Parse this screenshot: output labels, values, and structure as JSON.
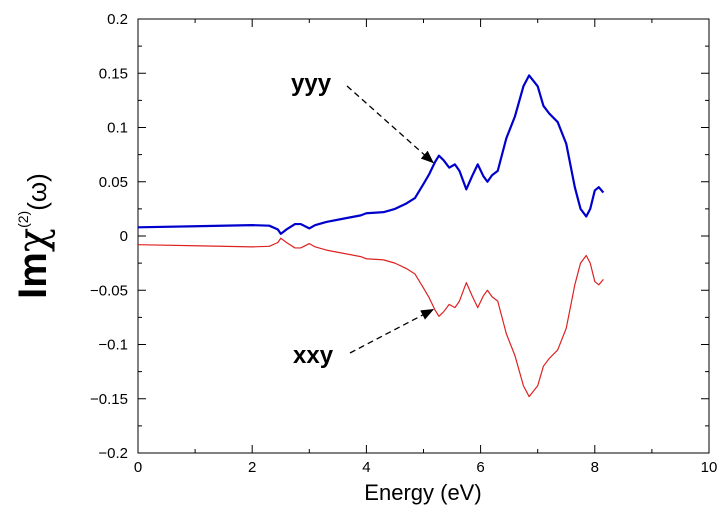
{
  "chart_data": {
    "type": "line",
    "title": "",
    "xlabel": "Energy (eV)",
    "ylabel": {
      "main": "Im",
      "chi": "χ",
      "sup": "(2)",
      "arg": "(ω)"
    },
    "xlim": [
      0,
      10
    ],
    "ylim": [
      -0.2,
      0.2
    ],
    "x_ticks": [
      0,
      2,
      4,
      6,
      8,
      10
    ],
    "y_ticks": [
      -0.2,
      -0.15,
      -0.1,
      -0.05,
      0,
      0.05,
      0.1,
      0.15,
      0.2
    ],
    "x_tick_labels": [
      "0",
      "2",
      "4",
      "6",
      "8",
      "10"
    ],
    "y_tick_labels": [
      "−0.2",
      "−0.15",
      "−0.1",
      "−0.05",
      "0",
      "0.05",
      "0.1",
      "0.15",
      "0.2"
    ],
    "grid": false,
    "series": [
      {
        "name": "yyy",
        "color": "#0000cc",
        "points": [
          [
            0,
            0.008
          ],
          [
            1.0,
            0.009
          ],
          [
            2.0,
            0.01
          ],
          [
            2.3,
            0.0095
          ],
          [
            2.45,
            0.006
          ],
          [
            2.5,
            0.002
          ],
          [
            2.6,
            0.006
          ],
          [
            2.75,
            0.011
          ],
          [
            2.85,
            0.011
          ],
          [
            3.0,
            0.007
          ],
          [
            3.1,
            0.01
          ],
          [
            3.3,
            0.013
          ],
          [
            3.6,
            0.016
          ],
          [
            3.9,
            0.019
          ],
          [
            4.0,
            0.021
          ],
          [
            4.3,
            0.022
          ],
          [
            4.5,
            0.025
          ],
          [
            4.7,
            0.03
          ],
          [
            4.85,
            0.035
          ],
          [
            5.0,
            0.048
          ],
          [
            5.1,
            0.057
          ],
          [
            5.2,
            0.068
          ],
          [
            5.27,
            0.074
          ],
          [
            5.35,
            0.07
          ],
          [
            5.45,
            0.063
          ],
          [
            5.55,
            0.066
          ],
          [
            5.63,
            0.06
          ],
          [
            5.75,
            0.043
          ],
          [
            5.85,
            0.055
          ],
          [
            5.95,
            0.066
          ],
          [
            6.05,
            0.055
          ],
          [
            6.12,
            0.05
          ],
          [
            6.2,
            0.056
          ],
          [
            6.3,
            0.06
          ],
          [
            6.45,
            0.09
          ],
          [
            6.6,
            0.11
          ],
          [
            6.75,
            0.138
          ],
          [
            6.85,
            0.148
          ],
          [
            7.0,
            0.138
          ],
          [
            7.1,
            0.12
          ],
          [
            7.2,
            0.113
          ],
          [
            7.35,
            0.105
          ],
          [
            7.5,
            0.085
          ],
          [
            7.65,
            0.045
          ],
          [
            7.75,
            0.025
          ],
          [
            7.85,
            0.018
          ],
          [
            7.92,
            0.025
          ],
          [
            8.0,
            0.042
          ],
          [
            8.07,
            0.045
          ],
          [
            8.15,
            0.04
          ]
        ]
      },
      {
        "name": "xxy",
        "color": "#dd2222",
        "points": [
          [
            0,
            -0.008
          ],
          [
            1.0,
            -0.009
          ],
          [
            2.0,
            -0.01
          ],
          [
            2.3,
            -0.0095
          ],
          [
            2.45,
            -0.006
          ],
          [
            2.5,
            -0.002
          ],
          [
            2.6,
            -0.006
          ],
          [
            2.75,
            -0.011
          ],
          [
            2.85,
            -0.011
          ],
          [
            3.0,
            -0.007
          ],
          [
            3.1,
            -0.01
          ],
          [
            3.3,
            -0.013
          ],
          [
            3.6,
            -0.016
          ],
          [
            3.9,
            -0.019
          ],
          [
            4.0,
            -0.021
          ],
          [
            4.3,
            -0.022
          ],
          [
            4.5,
            -0.025
          ],
          [
            4.7,
            -0.03
          ],
          [
            4.85,
            -0.035
          ],
          [
            5.0,
            -0.048
          ],
          [
            5.1,
            -0.057
          ],
          [
            5.2,
            -0.068
          ],
          [
            5.27,
            -0.074
          ],
          [
            5.35,
            -0.07
          ],
          [
            5.45,
            -0.063
          ],
          [
            5.55,
            -0.066
          ],
          [
            5.63,
            -0.06
          ],
          [
            5.75,
            -0.043
          ],
          [
            5.85,
            -0.055
          ],
          [
            5.95,
            -0.066
          ],
          [
            6.05,
            -0.055
          ],
          [
            6.12,
            -0.05
          ],
          [
            6.2,
            -0.056
          ],
          [
            6.3,
            -0.06
          ],
          [
            6.45,
            -0.09
          ],
          [
            6.6,
            -0.11
          ],
          [
            6.75,
            -0.138
          ],
          [
            6.85,
            -0.148
          ],
          [
            7.0,
            -0.138
          ],
          [
            7.1,
            -0.12
          ],
          [
            7.2,
            -0.113
          ],
          [
            7.35,
            -0.105
          ],
          [
            7.5,
            -0.085
          ],
          [
            7.65,
            -0.045
          ],
          [
            7.75,
            -0.025
          ],
          [
            7.85,
            -0.018
          ],
          [
            7.92,
            -0.025
          ],
          [
            8.0,
            -0.042
          ],
          [
            8.07,
            -0.045
          ],
          [
            8.15,
            -0.04
          ]
        ]
      }
    ],
    "annotations": [
      {
        "text": "yyy",
        "arrow_to": [
          5.2,
          0.066
        ]
      },
      {
        "text": "xxy",
        "arrow_to": [
          5.2,
          -0.066
        ]
      }
    ]
  }
}
